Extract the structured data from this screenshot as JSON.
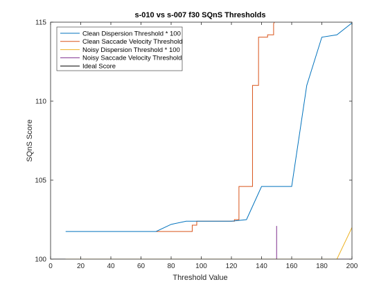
{
  "chart_data": {
    "type": "line",
    "title": "s-010 vs s-007 f30 SQnS Thresholds",
    "xlabel": "Threshold Value",
    "ylabel": "SQnS Score",
    "xlim": [
      0,
      200
    ],
    "ylim": [
      100,
      115
    ],
    "xticks": [
      0,
      20,
      40,
      60,
      80,
      100,
      120,
      140,
      160,
      180,
      200
    ],
    "yticks": [
      100,
      105,
      110,
      115
    ],
    "grid": false,
    "legend_position": "top-left",
    "series": [
      {
        "name": "Clean Dispersion Threshold * 100",
        "color": "#0072BD",
        "x": [
          10,
          70,
          80,
          90,
          100,
          110,
          120,
          130,
          140,
          150,
          160,
          170,
          180,
          190,
          200
        ],
        "y": [
          101.75,
          101.75,
          102.2,
          102.4,
          102.4,
          102.4,
          102.4,
          102.5,
          104.6,
          104.6,
          104.6,
          111.0,
          114.05,
          114.2,
          114.95
        ]
      },
      {
        "name": "Clean Saccade Velocity Threshold",
        "color": "#D95319",
        "x": [
          70,
          94,
          94,
          97,
          97,
          122,
          122,
          125,
          125,
          134,
          134,
          138,
          138,
          144,
          144,
          148,
          148,
          150
        ],
        "y": [
          101.75,
          101.75,
          102.15,
          102.15,
          102.4,
          102.4,
          102.5,
          102.5,
          104.6,
          104.6,
          111.0,
          111.0,
          114.05,
          114.05,
          114.2,
          114.2,
          114.9,
          115.3
        ]
      },
      {
        "name": "Noisy Dispersion Threshold * 100",
        "color": "#EDB120",
        "x": [
          10,
          190,
          200
        ],
        "y": [
          100,
          100,
          102.0
        ]
      },
      {
        "name": "Noisy Saccade Velocity Threshold",
        "color": "#7E2F8E",
        "x": [
          10,
          150,
          150,
          150,
          200
        ],
        "y": [
          100,
          100,
          102.1,
          100,
          100
        ]
      },
      {
        "name": "Ideal Score",
        "color": "#000000",
        "x": [
          0,
          200
        ],
        "y": [
          100,
          100
        ]
      }
    ]
  }
}
